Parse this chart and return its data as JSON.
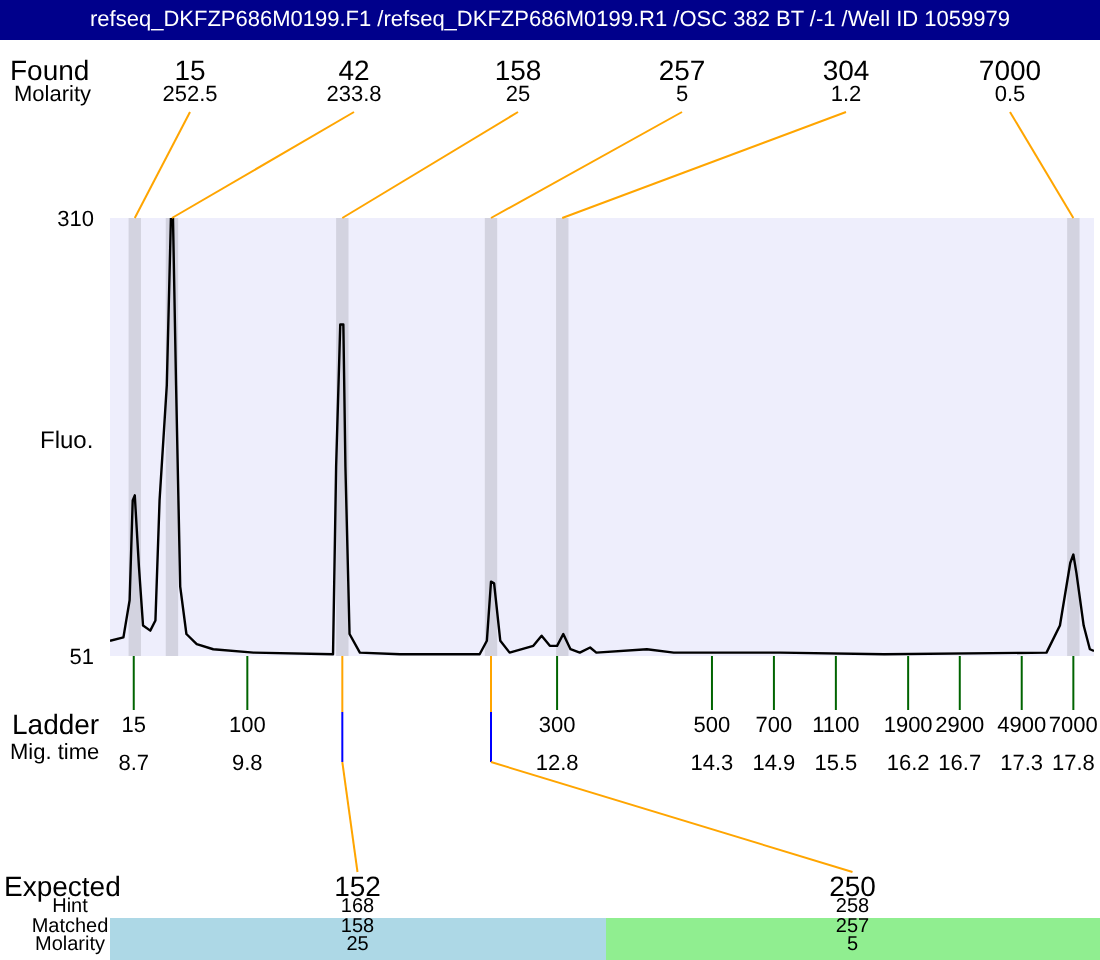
{
  "chart_data": {
    "type": "line",
    "title": "refseq_DKFZP686M0199.F1 /refseq_DKFZP686M0199.R1 /OSC 382 BT /-1 /Well ID 1059979",
    "ylabel": "Fluo.",
    "xlabel": "Mig. time",
    "color": "#000000",
    "x": [
      8.47,
      8.6,
      8.66,
      8.69,
      8.71,
      8.75,
      8.79,
      8.86,
      8.91,
      8.95,
      9.02,
      9.06,
      9.08,
      9.11,
      9.15,
      9.21,
      9.31,
      9.47,
      9.86,
      10.63,
      10.66,
      10.7,
      10.73,
      10.75,
      10.79,
      10.89,
      11.28,
      12.05,
      12.12,
      12.16,
      12.19,
      12.25,
      12.34,
      12.57,
      12.65,
      12.73,
      12.8,
      12.86,
      12.93,
      13.02,
      13.12,
      13.18,
      13.67,
      13.93,
      14.96,
      15.97,
      17.54,
      17.67,
      17.77,
      17.8,
      17.83,
      17.9,
      17.96,
      18.0
    ],
    "values": [
      60,
      62,
      84,
      143,
      146,
      104,
      69,
      66,
      72,
      143,
      211,
      310,
      310,
      211,
      92,
      64,
      58,
      55,
      53,
      52,
      163,
      247,
      247,
      163,
      64,
      53,
      52,
      52,
      60,
      95,
      94,
      60,
      53,
      57,
      63,
      57,
      57,
      64,
      55,
      53,
      56,
      53,
      55,
      53,
      53,
      52,
      53,
      69,
      106,
      111,
      100,
      69,
      55,
      54
    ],
    "xlim": [
      8.47,
      18.0
    ],
    "ylim": [
      51,
      310
    ],
    "yticks": [
      51,
      310
    ],
    "xticks": [
      8.7,
      9.8,
      12.8,
      14.3,
      14.9,
      15.5,
      16.2,
      16.7,
      17.3,
      17.8
    ],
    "bands": [
      {
        "axis": "x",
        "from": 8.65,
        "to": 8.77,
        "label": "15",
        "color": "#d3d3e0"
      },
      {
        "axis": "x",
        "from": 9.01,
        "to": 9.13,
        "label": "42",
        "color": "#d3d3e0"
      },
      {
        "axis": "x",
        "from": 10.66,
        "to": 10.78,
        "label": "158",
        "color": "#d3d3e0"
      },
      {
        "axis": "x",
        "from": 12.1,
        "to": 12.22,
        "label": "257",
        "color": "#d3d3e0"
      },
      {
        "axis": "x",
        "from": 12.79,
        "to": 12.91,
        "label": "304",
        "color": "#d3d3e0"
      },
      {
        "axis": "x",
        "from": 17.74,
        "to": 17.86,
        "label": "7000",
        "color": "#d3d3e0"
      }
    ],
    "annotations": [
      "Found",
      "Molarity",
      "Ladder",
      "Expected",
      "Hint",
      "Matched",
      "Molarity",
      {
        "text": "252.5",
        "x": 8.71,
        "y": 310
      },
      {
        "text": "233.8",
        "x": 9.07,
        "y": 310
      },
      {
        "text": "25",
        "x": 10.72,
        "y": 310
      },
      {
        "text": "5",
        "x": 12.16,
        "y": 310
      },
      {
        "text": "1.2",
        "x": 12.85,
        "y": 310
      },
      {
        "text": "0.5",
        "x": 17.8,
        "y": 310
      },
      {
        "text": "15",
        "x": 8.7,
        "y": 51
      },
      {
        "text": "100",
        "x": 9.8,
        "y": 51
      },
      {
        "text": "300",
        "x": 12.8,
        "y": 51
      },
      {
        "text": "500",
        "x": 14.3,
        "y": 51
      },
      {
        "text": "700",
        "x": 14.9,
        "y": 51
      },
      {
        "text": "1100",
        "x": 15.5,
        "y": 51
      },
      {
        "text": "1900",
        "x": 16.2,
        "y": 51
      },
      {
        "text": "2900",
        "x": 16.7,
        "y": 51
      },
      {
        "text": "4900",
        "x": 17.3,
        "y": 51
      },
      {
        "text": "7000",
        "x": 17.8,
        "y": 51
      },
      "152",
      "168",
      "158",
      "25",
      "250",
      "258",
      "257",
      "5"
    ]
  }
}
